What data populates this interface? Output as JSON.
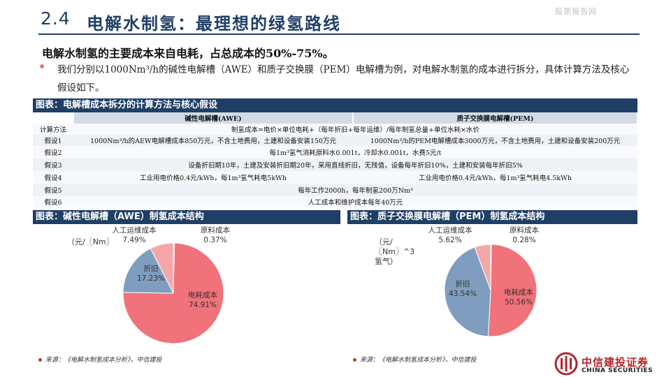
{
  "header": {
    "section_number": "2.4",
    "title": "电解水制氢：最理想的绿氢路线",
    "watermark": "股票报告网"
  },
  "headline": "电解水制氢的主要成本来自电耗，占总成本的50%-75%。",
  "bullet": "我们分别以1000Nm³/h的碱性电解槽（AWE）和质子交换膜（PEM）电解槽为例，对电解水制氢的成本进行拆分，具体计算方法及核心假设如下。",
  "table": {
    "title": "图表：电解槽成本拆分的计算方法与核心假设",
    "headers": [
      "",
      "碱性电解槽(AWE)",
      "质子交换膜电解槽(PEM)"
    ],
    "rows": [
      {
        "label": "计算方法",
        "merged": "制氢成本=电价×单位电耗+（每年折旧+每年运维）/每年制氢总量+单位水耗×水价"
      },
      {
        "label": "假设1",
        "awe": "1000Nm³/h的AEW电解槽成本850万元，不含土地费用，土建和设备安装150万元",
        "pem": "1000Nm³/h的PEM电解槽成本3000万元，不含土地费用，土建和设备安装200万元"
      },
      {
        "label": "假设2",
        "merged": "每1m³氢气消耗原料水0.001t，冷却水0.001t，水费5元/t"
      },
      {
        "label": "假设3",
        "merged": "设备折旧期10年，土建及安装折旧期20年，采用直线折旧，无残值，设备每年折旧10%，土建和安装每年折旧5%"
      },
      {
        "label": "假设4",
        "awe": "工业用电价格0.4元/kWh，每1m³氢气耗电5kWh",
        "pem": "工业用电价格0.4元/kWh，每1m³氢气耗电4.5kWh"
      },
      {
        "label": "假设5",
        "merged": "每年工作2000h，每年制氢200万Nm³"
      },
      {
        "label": "假设6",
        "merged": "人工成本和维护成本每年40万元"
      }
    ]
  },
  "awe_section": {
    "title": "图表：碱性电解槽（AWE）制氢成本结构",
    "unit_label": "（元/〖Nm〗",
    "source": "来源：《电解水制氢成本分析》，中信建投"
  },
  "pem_section": {
    "title": "图表：质子交换膜电解槽（PEM）制氢成本结构",
    "unit_label_lines": [
      "（元/",
      "〖Nm〗^3",
      "氢气）"
    ],
    "source": "来源：《电解水制氢成本分析》，中信建投"
  },
  "chart_data": [
    {
      "type": "pie",
      "title": "",
      "categories": [
        "原料成本",
        "电耗成本",
        "折旧",
        "人工运维成本"
      ],
      "values": [
        0.37,
        74.91,
        17.23,
        7.49
      ],
      "value_labels": [
        "0.37%",
        "74.91%",
        "17.23%",
        "7.49%"
      ],
      "colors": [
        "#e8c5c5",
        "#f0727a",
        "#7f9dbf",
        "#f4a7a8"
      ]
    },
    {
      "type": "pie",
      "title": "",
      "categories": [
        "原料成本",
        "电耗成本",
        "折旧",
        "人工运维成本"
      ],
      "values": [
        0.28,
        50.56,
        43.54,
        5.62
      ],
      "value_labels": [
        "0.28%",
        "50.56%",
        "43.54%",
        "5.62%"
      ],
      "colors": [
        "#e8c5c5",
        "#f0727a",
        "#7f9dbf",
        "#f4a7a8"
      ]
    }
  ],
  "brand": {
    "name_cn": "中信建投证券",
    "name_en": "CHINA SECURITIES"
  }
}
